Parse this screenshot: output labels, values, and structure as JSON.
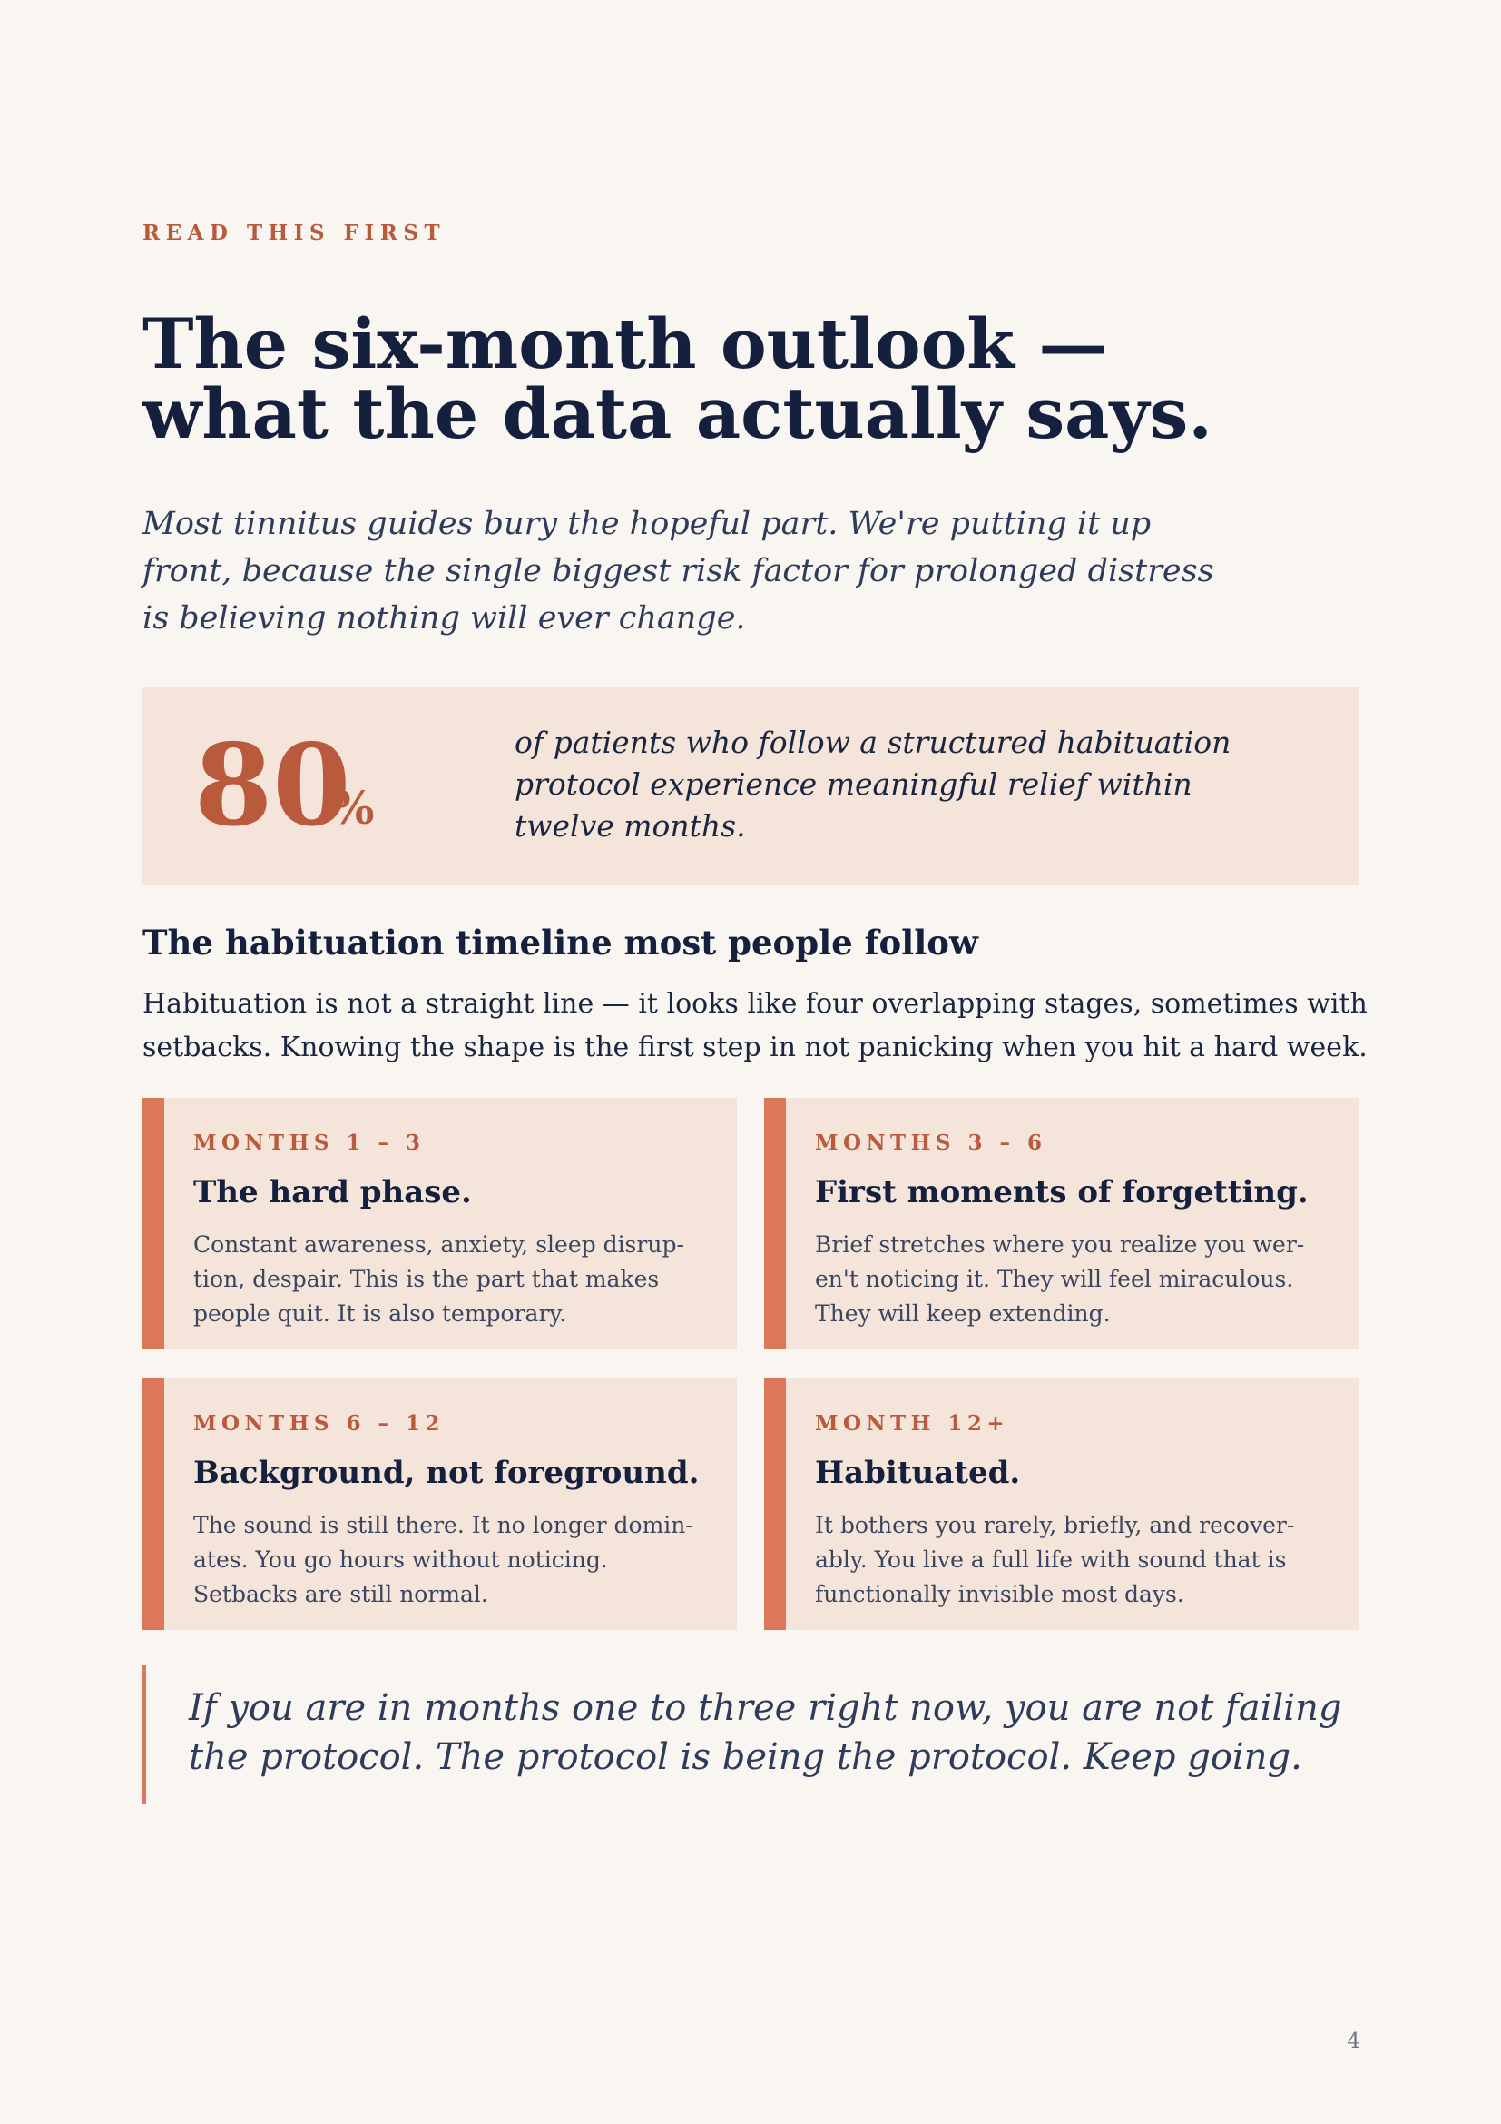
{
  "eyebrow": "READ THIS FIRST",
  "title": {
    "line1": "The six-month outlook —",
    "line2": "what the data actually says."
  },
  "lede": {
    "line1": "Most tinnitus guides bury the hopeful part. We're putting it up",
    "line2": "front, because the single biggest risk factor for prolonged distress",
    "line3": "is believing nothing will ever change."
  },
  "stat": {
    "number": "80",
    "unit": "%",
    "line1": "of patients who follow a structured habituation",
    "line2": "protocol experience meaningful relief within",
    "line3": "twelve months."
  },
  "section": {
    "heading": "The habituation timeline most people follow",
    "line1": "Habituation is not a straight line — it looks like four overlapping stages, sometimes with",
    "line2": "setbacks. Knowing the shape is the first step in not panicking when you hit a hard week."
  },
  "stages": [
    {
      "label": "MONTHS 1 – 3",
      "heading": "The hard phase.",
      "lines": [
        "Constant awareness, anxiety, sleep disrup-",
        "tion, despair. This is the part that makes",
        "people quit. It is also temporary."
      ]
    },
    {
      "label": "MONTHS 3 – 6",
      "heading": "First moments of forgetting.",
      "lines": [
        "Brief stretches where you realize you wer-",
        "en't noticing it. They will feel miraculous.",
        "They will keep extending."
      ]
    },
    {
      "label": "MONTHS 6 – 12",
      "heading": "Background, not foreground.",
      "lines": [
        "The sound is still there. It no longer domin-",
        "ates. You go hours without noticing.",
        "Setbacks are still normal."
      ]
    },
    {
      "label": "MONTH 12+",
      "heading": "Habituated.",
      "lines": [
        "It bothers you rarely, briefly, and recover-",
        "ably. You live a full life with sound that is",
        "functionally invisible most days."
      ]
    }
  ],
  "quote": {
    "line1": "If you are in months one to three right now, you are not failing",
    "line2": "the protocol. The protocol is being the protocol. Keep going."
  },
  "page_number": "4",
  "colors": {
    "background": "#f9f6f2",
    "accent": "#b95a3c",
    "accent_bar": "#dd7759",
    "card_fill": "#f4e4d9",
    "ink": "#14203d"
  }
}
